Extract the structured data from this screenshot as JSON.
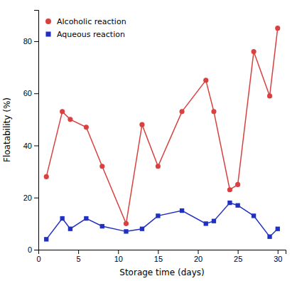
{
  "chart_data": {
    "type": "line",
    "x": [
      1,
      3,
      4,
      6,
      8,
      11,
      13,
      15,
      18,
      21,
      22,
      24,
      25,
      27,
      29,
      30
    ],
    "series": [
      {
        "name": "Alcoholic reaction",
        "color": "#d94040",
        "marker": "circle",
        "values": [
          28,
          53,
          50,
          47,
          32,
          10,
          48,
          32,
          53,
          65,
          53,
          23,
          25,
          76,
          59,
          85
        ]
      },
      {
        "name": "Aqueous reaction",
        "color": "#2030c0",
        "marker": "square",
        "values": [
          4,
          12,
          8,
          12,
          9,
          7,
          8,
          13,
          15,
          10,
          11,
          18,
          17,
          13,
          5,
          8
        ]
      }
    ],
    "x_label": "Storage time (days)",
    "y_label": "Floatability (%)",
    "xlim": [
      0,
      31
    ],
    "ylim": [
      0,
      92
    ],
    "xticks": [
      0,
      5,
      10,
      15,
      20,
      25,
      30
    ],
    "yticks": [
      0,
      20,
      40,
      60,
      80
    ],
    "grid": false,
    "legend": "upper left"
  }
}
